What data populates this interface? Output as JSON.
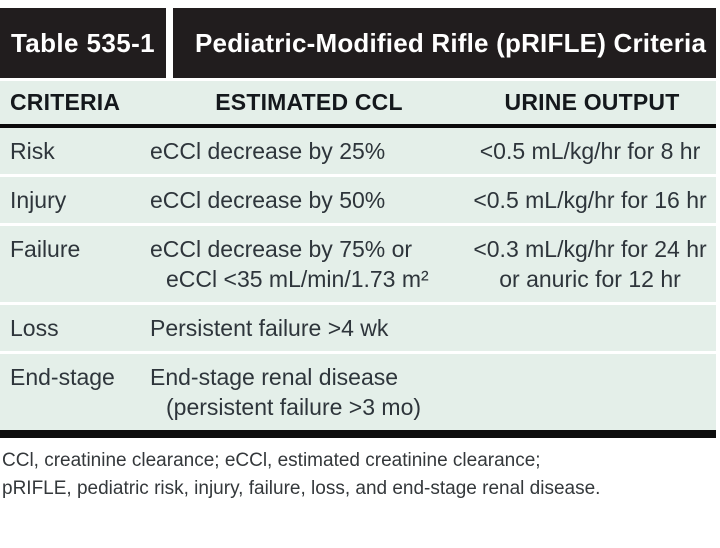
{
  "colors": {
    "header_bg": "#211d1e",
    "header_text": "#ffffff",
    "body_bg": "#e4efe9",
    "rule_black": "#0a0a0a",
    "row_divider": "#ffffff",
    "body_text": "#2e353b"
  },
  "header": {
    "table_number": "Table 535-1",
    "table_title": "Pediatric-Modified Rifle (pRIFLE) Criteria"
  },
  "table": {
    "columns": [
      "CRITERIA",
      "ESTIMATED CCL",
      "URINE OUTPUT"
    ],
    "rows": [
      {
        "criteria": "Risk",
        "estimated_ccl": "eCCl decrease by 25%",
        "urine_output": "<0.5 mL/kg/hr for 8 hr"
      },
      {
        "criteria": "Injury",
        "estimated_ccl": "eCCl decrease by 50%",
        "urine_output": "<0.5 mL/kg/hr for 16 hr"
      },
      {
        "criteria": "Failure",
        "estimated_ccl": "eCCl decrease by 75% or\neCCl <35 mL/min/1.73 m²",
        "urine_output": "<0.3 mL/kg/hr for 24 hr\nor anuric for 12 hr"
      },
      {
        "criteria": "Loss",
        "estimated_ccl": "Persistent failure >4 wk",
        "urine_output": ""
      },
      {
        "criteria": "End-stage",
        "estimated_ccl": "End-stage renal disease\n(persistent failure >3 mo)",
        "urine_output": ""
      }
    ]
  },
  "footnote": {
    "line1": "CCl, creatinine clearance; eCCl, estimated creatinine clearance;",
    "line2": "pRIFLE, pediatric risk, injury, failure, loss, and end-stage renal disease."
  }
}
